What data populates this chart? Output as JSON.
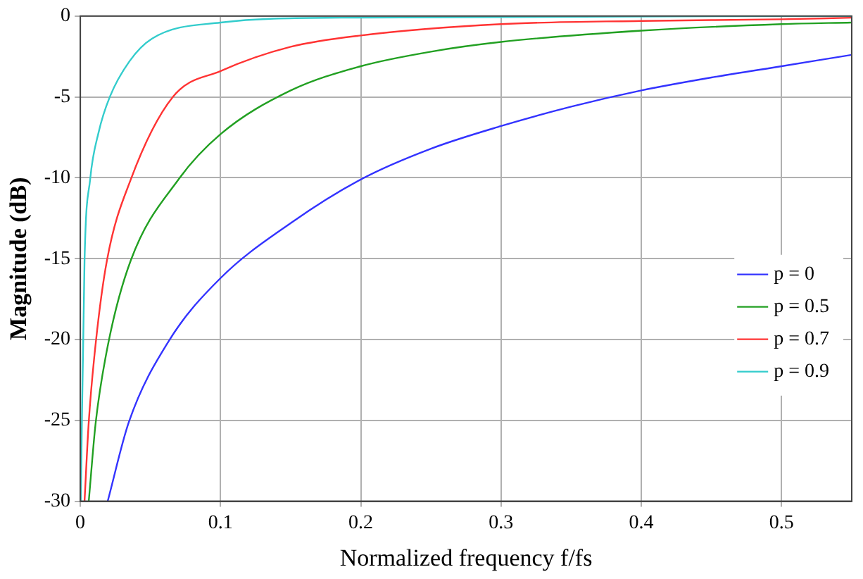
{
  "chart_data": {
    "type": "line",
    "xlabel": "Normalized frequency f/fs",
    "ylabel": "Magnitude (dB)",
    "xlim": [
      0,
      0.55
    ],
    "xticks": [
      0,
      0.1,
      0.2,
      0.3,
      0.4,
      0.5
    ],
    "ylim": [
      -30,
      0
    ],
    "yticks": [
      -30,
      -25,
      -20,
      -15,
      -10,
      -5,
      0
    ],
    "grid": true,
    "legend": "right",
    "marker": "none",
    "line_style": "solid",
    "series": [
      {
        "name": "p = 0",
        "color": "#3333ff",
        "x": [
          0.0195,
          0.0346,
          0.063,
          0.1,
          0.15,
          0.2,
          0.25,
          0.3,
          0.35,
          0.4,
          0.45,
          0.5,
          0.55
        ],
        "values": [
          -30,
          -25.1,
          -20.1,
          -16.2,
          -12.8,
          -10.1,
          -8.2,
          -6.8,
          -5.6,
          -4.6,
          -3.8,
          -3.1,
          -2.4
        ]
      },
      {
        "name": "p = 0.5",
        "color": "#22a022",
        "x": [
          0.006,
          0.011,
          0.02,
          0.036,
          0.07,
          0.1,
          0.15,
          0.2,
          0.25,
          0.3,
          0.4,
          0.5,
          0.55
        ],
        "values": [
          -30,
          -25.1,
          -20.2,
          -15.1,
          -10.1,
          -7.3,
          -4.6,
          -3.1,
          -2.2,
          -1.6,
          -0.9,
          -0.5,
          -0.4
        ]
      },
      {
        "name": "p = 0.7",
        "color": "#ff3333",
        "x": [
          0.003,
          0.006,
          0.011,
          0.019,
          0.036,
          0.066,
          0.1,
          0.15,
          0.2,
          0.3,
          0.4,
          0.5,
          0.55
        ],
        "values": [
          -30,
          -25.1,
          -20.2,
          -15.1,
          -10.1,
          -5,
          -3.4,
          -1.9,
          -1.2,
          -0.5,
          -0.3,
          -0.2,
          -0.1
        ]
      },
      {
        "name": "p = 0.9",
        "color": "#33cccc",
        "x": [
          0.0003,
          0.003,
          0.007,
          0.013,
          0.021,
          0.035,
          0.051,
          0.1,
          0.186,
          0.55
        ],
        "values": [
          -30,
          -15.1,
          -10.1,
          -7.2,
          -5,
          -2.8,
          -1.4,
          -0.4,
          -0.1,
          0
        ]
      }
    ]
  }
}
